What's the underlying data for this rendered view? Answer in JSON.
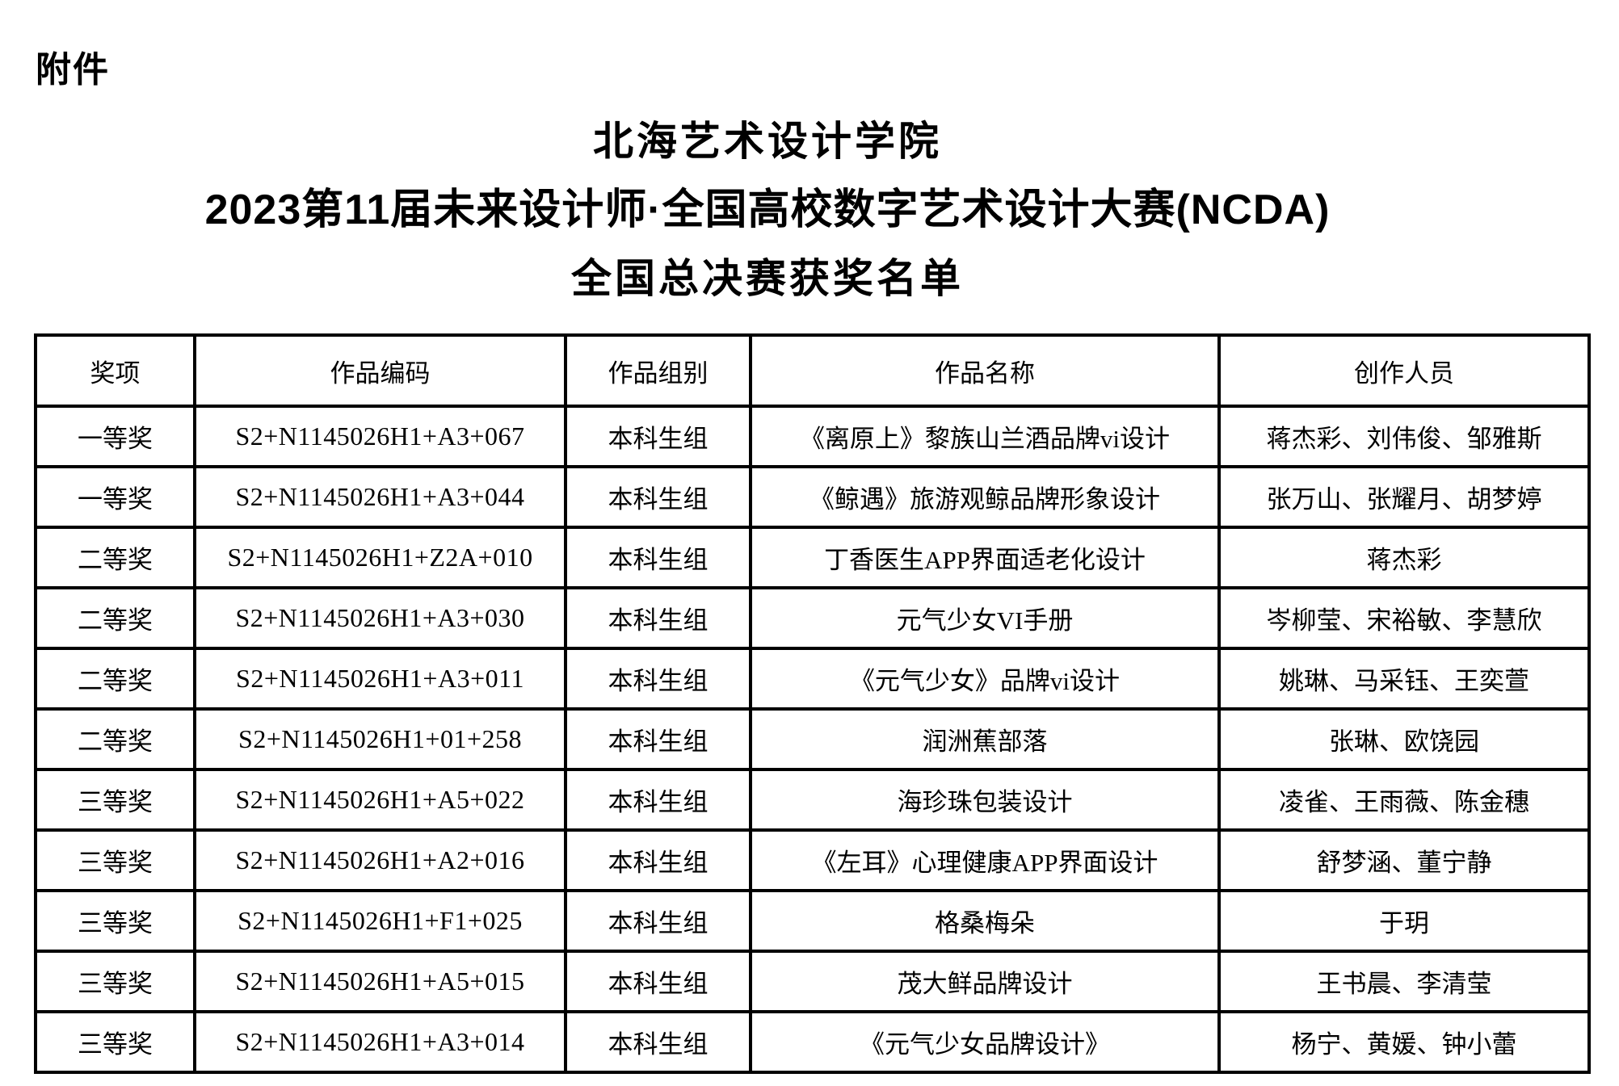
{
  "attachment_label": "附件",
  "title": {
    "line1": "北海艺术设计学院",
    "line2": "2023第11届未来设计师·全国高校数字艺术设计大赛(NCDA)",
    "line3": "全国总决赛获奖名单"
  },
  "table": {
    "headers": [
      "奖项",
      "作品编码",
      "作品组别",
      "作品名称",
      "创作人员"
    ],
    "rows": [
      {
        "award": "一等奖",
        "code": "S2+N1145026H1+A3+067",
        "group": "本科生组",
        "title": "《离原上》黎族山兰酒品牌vi设计",
        "creators": "蒋杰彩、刘伟俊、邹雅斯"
      },
      {
        "award": "一等奖",
        "code": "S2+N1145026H1+A3+044",
        "group": "本科生组",
        "title": "《鲸遇》旅游观鲸品牌形象设计",
        "creators": "张万山、张耀月、胡梦婷"
      },
      {
        "award": "二等奖",
        "code": "S2+N1145026H1+Z2A+010",
        "group": "本科生组",
        "title": "丁香医生APP界面适老化设计",
        "creators": "蒋杰彩"
      },
      {
        "award": "二等奖",
        "code": "S2+N1145026H1+A3+030",
        "group": "本科生组",
        "title": "元气少女VI手册",
        "creators": "岑柳莹、宋裕敏、李慧欣"
      },
      {
        "award": "二等奖",
        "code": "S2+N1145026H1+A3+011",
        "group": "本科生组",
        "title": "《元气少女》品牌vi设计",
        "creators": "姚琳、马采钰、王奕萱"
      },
      {
        "award": "二等奖",
        "code": "S2+N1145026H1+01+258",
        "group": "本科生组",
        "title": "润洲蕉部落",
        "creators": "张琳、欧饶园"
      },
      {
        "award": "三等奖",
        "code": "S2+N1145026H1+A5+022",
        "group": "本科生组",
        "title": "海珍珠包装设计",
        "creators": "凌雀、王雨薇、陈金穗"
      },
      {
        "award": "三等奖",
        "code": "S2+N1145026H1+A2+016",
        "group": "本科生组",
        "title": "《左耳》心理健康APP界面设计",
        "creators": "舒梦涵、董宁静"
      },
      {
        "award": "三等奖",
        "code": "S2+N1145026H1+F1+025",
        "group": "本科生组",
        "title": "格桑梅朵",
        "creators": "于玥"
      },
      {
        "award": "三等奖",
        "code": "S2+N1145026H1+A5+015",
        "group": "本科生组",
        "title": "茂大鲜品牌设计",
        "creators": "王书晨、李清莹"
      },
      {
        "award": "三等奖",
        "code": "S2+N1145026H1+A3+014",
        "group": "本科生组",
        "title": "《元气少女品牌设计》",
        "creators": "杨宁、黄媛、钟小蕾"
      }
    ]
  }
}
